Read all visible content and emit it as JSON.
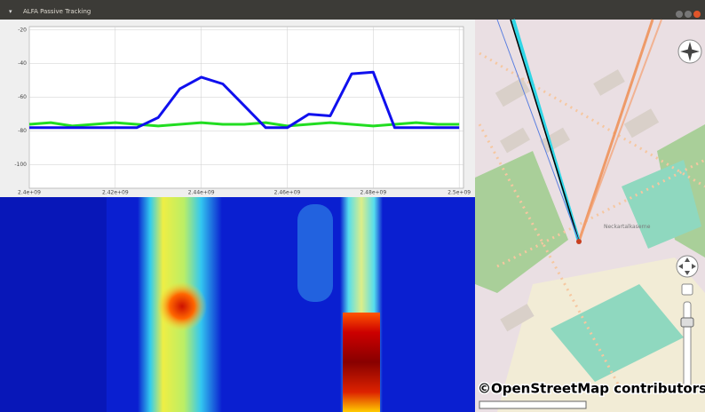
{
  "window": {
    "title": "ALFA Passive Tracking"
  },
  "spectrum": {
    "x": [
      2400000000,
      2405000000,
      2410000000,
      2415000000,
      2420000000,
      2425000000,
      2430000000,
      2435000000,
      2440000000,
      2445000000,
      2450000000,
      2455000000,
      2460000000,
      2465000000,
      2470000000,
      2475000000,
      2480000000,
      2485000000,
      2490000000,
      2495000000,
      2500000000
    ],
    "series": [
      {
        "color": "#22dd22",
        "values": [
          -76,
          -75,
          -77,
          -76,
          -75,
          -76,
          -77,
          -76,
          -75,
          -76,
          -76,
          -75,
          -77,
          -76,
          -75,
          -76,
          -77,
          -76,
          -75,
          -76,
          -76
        ]
      },
      {
        "color": "#1010ee",
        "values": [
          -78,
          -78,
          -78,
          -78,
          -78,
          -78,
          -72,
          -55,
          -48,
          -52,
          -65,
          -78,
          -78,
          -70,
          -71,
          -46,
          -45,
          -78,
          -78,
          -78,
          -78
        ]
      }
    ],
    "xlim": [
      2400000000,
      2501000000
    ],
    "ylim": [
      -114,
      -18
    ],
    "xticks": [
      {
        "value": 2400000000,
        "label": "2.4e+09"
      },
      {
        "value": 2420000000,
        "label": "2.42e+09"
      },
      {
        "value": 2440000000,
        "label": "2.44e+09"
      },
      {
        "value": 2460000000,
        "label": "2.46e+09"
      },
      {
        "value": 2480000000,
        "label": "2.48e+09"
      },
      {
        "value": 2500000000,
        "label": "2.5e+09"
      }
    ],
    "yticks": [
      -20,
      -40,
      -60,
      -80,
      -100
    ],
    "grid": true
  },
  "map": {
    "label": "Neckartalkaserne",
    "attribution": "©OpenStreetMap contributors"
  }
}
